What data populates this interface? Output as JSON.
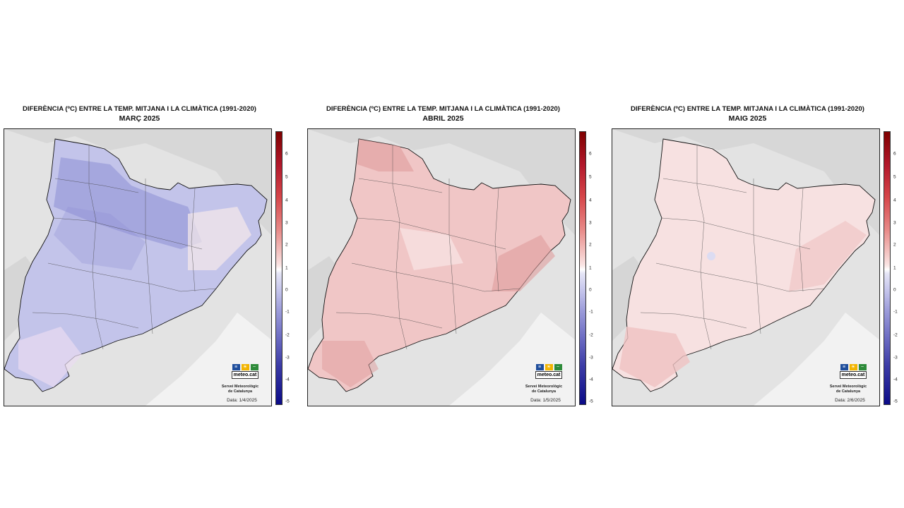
{
  "panels": [
    {
      "title_line1": "DIFERÈNCIA (ºC) ENTRE LA TEMP. MITJANA I LA CLIMÀTICA (1991-2020)",
      "title_line2": "MARÇ 2025",
      "fill_color": "#c3c4ea",
      "accent_color": "#8d8fd4",
      "date": "Data: 1/4/2025"
    },
    {
      "title_line1": "DIFERÈNCIA (ºC) ENTRE LA TEMP. MITJANA I LA CLIMÀTICA (1991-2020)",
      "title_line2": "ABRIL 2025",
      "fill_color": "#f0c6c6",
      "accent_color": "#e09c9c",
      "date": "Data: 1/5/2025"
    },
    {
      "title_line1": "DIFERÈNCIA (ºC) ENTRE LA TEMP. MITJANA I LA CLIMÀTICA (1991-2020)",
      "title_line2": "MAIG 2025",
      "fill_color": "#f7e1e1",
      "accent_color": "#efc2c2",
      "date": "Data: 2/6/2025"
    }
  ],
  "scale_ticks": [
    "6",
    "5",
    "4",
    "3",
    "2",
    "1",
    "0",
    "-1",
    "-2",
    "-3",
    "-4",
    "-5"
  ],
  "logo": {
    "name": "meteo.cat",
    "org_line1": "Servei Meteorològic",
    "org_line2": "de Catalunya"
  }
}
